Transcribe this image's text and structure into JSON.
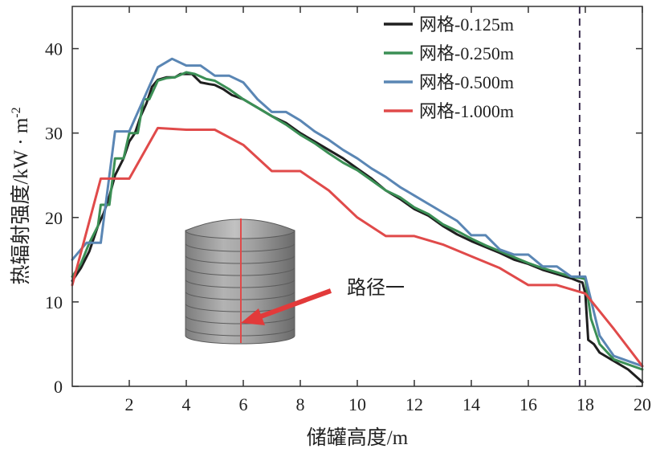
{
  "chart_data": {
    "type": "line",
    "title": "",
    "xlabel": "储罐高度/m",
    "ylabel_text": "热辐射强度/kW · m",
    "ylabel_sup": "-2",
    "xlim": [
      0,
      20
    ],
    "ylim": [
      0,
      45
    ],
    "xticks": [
      2,
      4,
      6,
      8,
      10,
      12,
      14,
      16,
      18,
      20
    ],
    "yticks": [
      0,
      10,
      20,
      30,
      40
    ],
    "grid": false,
    "legend_position": "top-right",
    "vline": {
      "x": 17.8,
      "color": "#3a2d4e",
      "style": "dashed"
    },
    "annotation": {
      "text": "路径一"
    },
    "series": [
      {
        "name": "网格-0.125m",
        "color": "#1f1f1f",
        "points": [
          [
            0.0,
            12.5
          ],
          [
            0.3,
            14.0
          ],
          [
            0.6,
            16.0
          ],
          [
            0.9,
            19.0
          ],
          [
            1.1,
            20.5
          ],
          [
            1.3,
            22.5
          ],
          [
            1.5,
            25.0
          ],
          [
            1.8,
            27.0
          ],
          [
            2.0,
            29.0
          ],
          [
            2.2,
            30.0
          ],
          [
            2.4,
            32.0
          ],
          [
            2.6,
            33.5
          ],
          [
            2.8,
            35.5
          ],
          [
            3.0,
            36.3
          ],
          [
            3.3,
            36.6
          ],
          [
            3.6,
            36.6
          ],
          [
            3.8,
            37.0
          ],
          [
            4.0,
            37.0
          ],
          [
            4.2,
            37.0
          ],
          [
            4.5,
            36.0
          ],
          [
            4.8,
            35.8
          ],
          [
            5.0,
            35.7
          ],
          [
            5.3,
            35.2
          ],
          [
            5.6,
            34.5
          ],
          [
            6.0,
            34.0
          ],
          [
            6.5,
            33.0
          ],
          [
            7.0,
            32.0
          ],
          [
            7.5,
            31.2
          ],
          [
            8.0,
            30.0
          ],
          [
            8.5,
            29.0
          ],
          [
            9.0,
            28.0
          ],
          [
            9.5,
            27.0
          ],
          [
            10.0,
            25.8
          ],
          [
            10.5,
            24.6
          ],
          [
            11.0,
            23.2
          ],
          [
            11.5,
            22.2
          ],
          [
            12.0,
            21.0
          ],
          [
            12.5,
            20.2
          ],
          [
            13.0,
            19.0
          ],
          [
            13.5,
            18.0
          ],
          [
            14.0,
            17.2
          ],
          [
            14.5,
            16.5
          ],
          [
            15.0,
            15.8
          ],
          [
            15.5,
            15.0
          ],
          [
            16.0,
            14.5
          ],
          [
            16.5,
            13.8
          ],
          [
            17.0,
            13.3
          ],
          [
            17.5,
            12.8
          ],
          [
            17.8,
            12.4
          ],
          [
            17.9,
            12.3
          ],
          [
            18.0,
            11.0
          ],
          [
            18.1,
            5.5
          ],
          [
            18.3,
            5.0
          ],
          [
            18.5,
            4.0
          ],
          [
            19.0,
            3.0
          ],
          [
            19.5,
            2.0
          ],
          [
            20.0,
            0.5
          ]
        ]
      },
      {
        "name": "网格-0.250m",
        "color": "#3b8f55",
        "points": [
          [
            0.0,
            13.0
          ],
          [
            0.3,
            14.5
          ],
          [
            0.6,
            17.0
          ],
          [
            0.9,
            19.0
          ],
          [
            1.0,
            21.5
          ],
          [
            1.3,
            21.5
          ],
          [
            1.5,
            27.0
          ],
          [
            1.8,
            27.0
          ],
          [
            2.0,
            30.0
          ],
          [
            2.3,
            30.0
          ],
          [
            2.5,
            34.0
          ],
          [
            2.7,
            34.0
          ],
          [
            3.0,
            36.2
          ],
          [
            3.3,
            36.5
          ],
          [
            3.6,
            36.6
          ],
          [
            4.0,
            37.2
          ],
          [
            4.3,
            37.0
          ],
          [
            4.7,
            36.4
          ],
          [
            5.0,
            36.2
          ],
          [
            5.5,
            35.2
          ],
          [
            6.0,
            34.0
          ],
          [
            6.5,
            33.0
          ],
          [
            7.0,
            32.0
          ],
          [
            7.5,
            31.0
          ],
          [
            8.0,
            29.8
          ],
          [
            8.5,
            28.8
          ],
          [
            9.0,
            27.6
          ],
          [
            9.5,
            26.5
          ],
          [
            10.0,
            25.6
          ],
          [
            10.5,
            24.4
          ],
          [
            11.0,
            23.2
          ],
          [
            11.5,
            22.4
          ],
          [
            12.0,
            21.2
          ],
          [
            12.5,
            20.4
          ],
          [
            13.0,
            19.2
          ],
          [
            13.5,
            18.4
          ],
          [
            14.0,
            17.5
          ],
          [
            14.5,
            16.7
          ],
          [
            15.0,
            16.0
          ],
          [
            15.5,
            15.3
          ],
          [
            16.0,
            14.6
          ],
          [
            16.5,
            14.0
          ],
          [
            17.0,
            13.5
          ],
          [
            17.5,
            13.0
          ],
          [
            17.9,
            12.8
          ],
          [
            18.0,
            12.7
          ],
          [
            18.2,
            8.0
          ],
          [
            18.5,
            5.0
          ],
          [
            19.0,
            3.2
          ],
          [
            20.0,
            2.0
          ]
        ]
      },
      {
        "name": "网格-0.500m",
        "color": "#5a86b4",
        "points": [
          [
            0.0,
            15.0
          ],
          [
            0.5,
            17.0
          ],
          [
            1.0,
            17.0
          ],
          [
            1.5,
            30.2
          ],
          [
            2.0,
            30.2
          ],
          [
            2.5,
            34.0
          ],
          [
            3.0,
            37.8
          ],
          [
            3.5,
            38.8
          ],
          [
            4.0,
            38.0
          ],
          [
            4.5,
            38.0
          ],
          [
            5.0,
            36.8
          ],
          [
            5.5,
            36.8
          ],
          [
            6.0,
            36.0
          ],
          [
            6.5,
            34.0
          ],
          [
            7.0,
            32.5
          ],
          [
            7.5,
            32.5
          ],
          [
            8.0,
            31.5
          ],
          [
            8.5,
            30.2
          ],
          [
            9.0,
            29.2
          ],
          [
            9.5,
            28.0
          ],
          [
            10.0,
            27.0
          ],
          [
            10.5,
            25.8
          ],
          [
            11.0,
            24.8
          ],
          [
            11.5,
            23.6
          ],
          [
            12.0,
            22.6
          ],
          [
            12.5,
            21.6
          ],
          [
            13.0,
            20.6
          ],
          [
            13.5,
            19.6
          ],
          [
            14.0,
            17.9
          ],
          [
            14.5,
            17.9
          ],
          [
            15.0,
            16.2
          ],
          [
            15.5,
            15.6
          ],
          [
            16.0,
            15.6
          ],
          [
            16.5,
            14.2
          ],
          [
            17.0,
            14.2
          ],
          [
            17.5,
            13.0
          ],
          [
            18.0,
            13.0
          ],
          [
            18.5,
            6.0
          ],
          [
            19.0,
            3.6
          ],
          [
            20.0,
            2.4
          ]
        ]
      },
      {
        "name": "网格-1.000m",
        "color": "#e04a4a",
        "points": [
          [
            0.0,
            12.0
          ],
          [
            1.0,
            24.6
          ],
          [
            2.0,
            24.6
          ],
          [
            3.0,
            30.6
          ],
          [
            4.0,
            30.4
          ],
          [
            5.0,
            30.4
          ],
          [
            6.0,
            28.6
          ],
          [
            7.0,
            25.5
          ],
          [
            8.0,
            25.5
          ],
          [
            9.0,
            23.2
          ],
          [
            10.0,
            20.0
          ],
          [
            11.0,
            17.8
          ],
          [
            12.0,
            17.8
          ],
          [
            13.0,
            16.8
          ],
          [
            14.0,
            15.4
          ],
          [
            15.0,
            14.0
          ],
          [
            16.0,
            12.0
          ],
          [
            17.0,
            12.0
          ],
          [
            18.0,
            11.0
          ],
          [
            19.0,
            6.8
          ],
          [
            20.0,
            2.4
          ]
        ]
      }
    ]
  }
}
